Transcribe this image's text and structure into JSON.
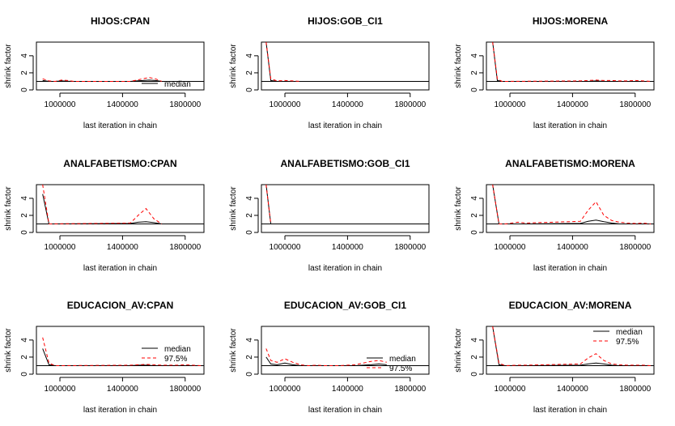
{
  "figure": {
    "rows": 3,
    "cols": 3
  },
  "chart_data": [
    {
      "type": "line",
      "title": "HIJOS:CPAN",
      "xlabel": "last iteration in chain",
      "ylabel": "shrink factor",
      "xlim": [
        850000,
        1920000
      ],
      "ylim": [
        0,
        5.6
      ],
      "xticks": [
        1000000,
        1400000,
        1800000
      ],
      "xtick_labels": [
        "1000000",
        "1400000",
        "1800000"
      ],
      "yticks": [
        0,
        2,
        4
      ],
      "ytick_labels": [
        "0",
        "2",
        "4"
      ],
      "reference_line": 1,
      "legend": {
        "entries": [
          "median"
        ],
        "position": "bottom-right"
      },
      "series": [
        {
          "name": "median",
          "style": "solid",
          "color": "#000000",
          "x": [
            890000,
            930000,
            970000,
            1010000,
            1050000,
            1090000,
            1130000,
            1170000,
            1210000,
            1250000,
            1290000,
            1330000,
            1370000,
            1410000,
            1450000,
            1490000,
            1530000,
            1570000,
            1610000,
            1650000
          ],
          "y": [
            1.1,
            1.0,
            1.0,
            1.05,
            1.02,
            1.0,
            1.0,
            1.0,
            1.0,
            1.0,
            1.0,
            1.0,
            1.0,
            1.0,
            1.0,
            1.05,
            1.1,
            1.15,
            1.1,
            1.0
          ]
        },
        {
          "name": "97.5%",
          "style": "dashed",
          "color": "#ff0000",
          "x": [
            890000,
            930000,
            970000,
            1010000,
            1050000,
            1090000,
            1130000,
            1170000,
            1210000,
            1250000,
            1290000,
            1330000,
            1370000,
            1410000,
            1450000,
            1490000,
            1530000,
            1570000,
            1610000,
            1650000
          ],
          "y": [
            1.3,
            1.05,
            1.0,
            1.15,
            1.1,
            1.0,
            1.0,
            1.0,
            1.0,
            1.0,
            1.0,
            1.0,
            1.0,
            1.0,
            1.0,
            1.15,
            1.3,
            1.45,
            1.3,
            1.0
          ]
        }
      ]
    },
    {
      "type": "line",
      "title": "HIJOS:GOB_CI1",
      "xlabel": "last iteration in chain",
      "ylabel": "shrink factor",
      "xlim": [
        850000,
        1920000
      ],
      "ylim": [
        0,
        5.6
      ],
      "xticks": [
        1000000,
        1400000,
        1800000
      ],
      "xtick_labels": [
        "1000000",
        "1400000",
        "1800000"
      ],
      "yticks": [
        0,
        2,
        4
      ],
      "ytick_labels": [
        "0",
        "2",
        "4"
      ],
      "reference_line": 1,
      "legend": {
        "entries": [],
        "position": "none"
      },
      "series": [
        {
          "name": "median",
          "style": "solid",
          "color": "#000000",
          "x": [
            880000,
            910000,
            950000,
            1000000,
            1050000,
            1100000
          ],
          "y": [
            5.6,
            1.1,
            1.0,
            1.0,
            1.0,
            1.0
          ]
        },
        {
          "name": "97.5%",
          "style": "dashed",
          "color": "#ff0000",
          "x": [
            880000,
            910000,
            950000,
            1000000,
            1050000,
            1100000
          ],
          "y": [
            5.6,
            1.3,
            1.05,
            1.1,
            1.05,
            1.0
          ]
        }
      ]
    },
    {
      "type": "line",
      "title": "HIJOS:MORENA",
      "xlabel": "last iteration in chain",
      "ylabel": "shrink factor",
      "xlim": [
        850000,
        1920000
      ],
      "ylim": [
        0,
        5.6
      ],
      "xticks": [
        1000000,
        1400000,
        1800000
      ],
      "xtick_labels": [
        "1000000",
        "1400000",
        "1800000"
      ],
      "yticks": [
        0,
        2,
        4
      ],
      "ytick_labels": [
        "0",
        "2",
        "4"
      ],
      "reference_line": 1,
      "legend": {
        "entries": [],
        "position": "none"
      },
      "series": [
        {
          "name": "median",
          "style": "solid",
          "color": "#000000",
          "x": [
            890000,
            920000,
            950000,
            1450000,
            1500000,
            1550000,
            1600000,
            1650000,
            1700000,
            1750000,
            1800000,
            1850000,
            1900000
          ],
          "y": [
            5.6,
            1.1,
            1.0,
            1.0,
            1.0,
            1.05,
            1.0,
            1.0,
            1.0,
            1.0,
            1.0,
            1.0,
            1.0
          ]
        },
        {
          "name": "97.5%",
          "style": "dashed",
          "color": "#ff0000",
          "x": [
            890000,
            920000,
            950000,
            1450000,
            1500000,
            1550000,
            1600000,
            1650000,
            1700000,
            1750000,
            1800000,
            1850000,
            1900000
          ],
          "y": [
            5.6,
            1.3,
            1.0,
            1.05,
            1.1,
            1.15,
            1.1,
            1.1,
            1.05,
            1.05,
            1.1,
            1.05,
            1.0
          ]
        }
      ]
    },
    {
      "type": "line",
      "title": "ANALFABETISMO:CPAN",
      "xlabel": "last iteration in chain",
      "ylabel": "shrink factor",
      "xlim": [
        850000,
        1920000
      ],
      "ylim": [
        0,
        5.6
      ],
      "xticks": [
        1000000,
        1400000,
        1800000
      ],
      "xtick_labels": [
        "1000000",
        "1400000",
        "1800000"
      ],
      "yticks": [
        0,
        2,
        4
      ],
      "ytick_labels": [
        "0",
        "2",
        "4"
      ],
      "reference_line": 1,
      "legend": {
        "entries": [],
        "position": "none"
      },
      "series": [
        {
          "name": "median",
          "style": "solid",
          "color": "#000000",
          "x": [
            890000,
            930000,
            1450000,
            1500000,
            1550000,
            1600000,
            1650000
          ],
          "y": [
            4.5,
            1.0,
            1.05,
            1.2,
            1.25,
            1.15,
            1.0
          ]
        },
        {
          "name": "97.5%",
          "style": "dashed",
          "color": "#ff0000",
          "x": [
            890000,
            930000,
            1450000,
            1500000,
            1550000,
            1600000,
            1650000
          ],
          "y": [
            5.6,
            1.0,
            1.1,
            2.0,
            2.8,
            1.6,
            1.0
          ]
        }
      ]
    },
    {
      "type": "line",
      "title": "ANALFABETISMO:GOB_CI1",
      "xlabel": "last iteration in chain",
      "ylabel": "shrink factor",
      "xlim": [
        850000,
        1920000
      ],
      "ylim": [
        0,
        5.6
      ],
      "xticks": [
        1000000,
        1400000,
        1800000
      ],
      "xtick_labels": [
        "1000000",
        "1400000",
        "1800000"
      ],
      "yticks": [
        0,
        2,
        4
      ],
      "ytick_labels": [
        "0",
        "2",
        "4"
      ],
      "reference_line": 1,
      "legend": {
        "entries": [],
        "position": "none"
      },
      "series": [
        {
          "name": "median",
          "style": "solid",
          "color": "#000000",
          "x": [
            880000,
            910000
          ],
          "y": [
            5.6,
            1.0
          ]
        },
        {
          "name": "97.5%",
          "style": "dashed",
          "color": "#ff0000",
          "x": [
            880000,
            910000
          ],
          "y": [
            5.6,
            1.0
          ]
        }
      ]
    },
    {
      "type": "line",
      "title": "ANALFABETISMO:MORENA",
      "xlabel": "last iteration in chain",
      "ylabel": "shrink factor",
      "xlim": [
        850000,
        1920000
      ],
      "ylim": [
        0,
        5.6
      ],
      "xticks": [
        1000000,
        1400000,
        1800000
      ],
      "xtick_labels": [
        "1000000",
        "1400000",
        "1800000"
      ],
      "yticks": [
        0,
        2,
        4
      ],
      "ytick_labels": [
        "0",
        "2",
        "4"
      ],
      "reference_line": 1,
      "legend": {
        "entries": [],
        "position": "none"
      },
      "series": [
        {
          "name": "median",
          "style": "solid",
          "color": "#000000",
          "x": [
            890000,
            930000,
            970000,
            1050000,
            1100000,
            1450000,
            1500000,
            1550000,
            1600000,
            1650000,
            1700000,
            1750000,
            1800000,
            1850000,
            1900000
          ],
          "y": [
            5.6,
            1.0,
            1.0,
            1.0,
            1.0,
            1.05,
            1.3,
            1.45,
            1.25,
            1.1,
            1.0,
            1.0,
            1.0,
            1.0,
            1.0
          ]
        },
        {
          "name": "97.5%",
          "style": "dashed",
          "color": "#ff0000",
          "x": [
            890000,
            930000,
            970000,
            1050000,
            1100000,
            1450000,
            1500000,
            1550000,
            1600000,
            1650000,
            1700000,
            1750000,
            1800000,
            1850000,
            1900000
          ],
          "y": [
            5.6,
            1.0,
            1.0,
            1.2,
            1.1,
            1.3,
            2.6,
            3.6,
            2.0,
            1.4,
            1.2,
            1.1,
            1.05,
            1.1,
            1.0
          ]
        }
      ]
    },
    {
      "type": "line",
      "title": "EDUCACION_AV:CPAN",
      "xlabel": "last iteration in chain",
      "ylabel": "shrink factor",
      "xlim": [
        850000,
        1920000
      ],
      "ylim": [
        0,
        5.6
      ],
      "xticks": [
        1000000,
        1400000,
        1800000
      ],
      "xtick_labels": [
        "1000000",
        "1400000",
        "1800000"
      ],
      "yticks": [
        0,
        2,
        4
      ],
      "ytick_labels": [
        "0",
        "2",
        "4"
      ],
      "reference_line": 1,
      "legend": {
        "entries": [
          "median",
          "97.5%"
        ],
        "position": "right"
      },
      "series": [
        {
          "name": "median",
          "style": "solid",
          "color": "#000000",
          "x": [
            890000,
            930000,
            970000,
            1450000,
            1500000,
            1550000,
            1600000,
            1650000,
            1700000,
            1750000,
            1800000,
            1850000,
            1900000
          ],
          "y": [
            3.0,
            1.1,
            1.0,
            1.0,
            1.05,
            1.05,
            1.0,
            1.0,
            1.0,
            1.0,
            1.0,
            1.0,
            1.0
          ]
        },
        {
          "name": "97.5%",
          "style": "dashed",
          "color": "#ff0000",
          "x": [
            890000,
            930000,
            970000,
            1450000,
            1500000,
            1550000,
            1600000,
            1650000,
            1700000,
            1750000,
            1800000,
            1850000,
            1900000
          ],
          "y": [
            4.3,
            1.3,
            1.0,
            1.05,
            1.1,
            1.15,
            1.1,
            1.05,
            1.05,
            1.05,
            1.1,
            1.05,
            1.0
          ]
        }
      ]
    },
    {
      "type": "line",
      "title": "EDUCACION_AV:GOB_CI1",
      "xlabel": "last iteration in chain",
      "ylabel": "shrink factor",
      "xlim": [
        850000,
        1920000
      ],
      "ylim": [
        0,
        5.6
      ],
      "xticks": [
        1000000,
        1400000,
        1800000
      ],
      "xtick_labels": [
        "1000000",
        "1400000",
        "1800000"
      ],
      "yticks": [
        0,
        2,
        4
      ],
      "ytick_labels": [
        "0",
        "2",
        "4"
      ],
      "reference_line": 1,
      "legend": {
        "entries": [
          "median",
          "97.5%"
        ],
        "position": "bottom-right"
      },
      "series": [
        {
          "name": "median",
          "style": "solid",
          "color": "#000000",
          "x": [
            880000,
            910000,
            950000,
            1000000,
            1050000,
            1100000,
            1150000,
            1200000,
            1250000,
            1300000,
            1350000,
            1400000,
            1450000,
            1500000,
            1550000,
            1600000,
            1650000
          ],
          "y": [
            2.0,
            1.2,
            1.1,
            1.3,
            1.1,
            1.0,
            1.0,
            1.0,
            1.0,
            1.0,
            1.0,
            1.0,
            1.0,
            1.05,
            1.1,
            1.2,
            1.1
          ]
        },
        {
          "name": "97.5%",
          "style": "dashed",
          "color": "#ff0000",
          "x": [
            880000,
            910000,
            950000,
            1000000,
            1050000,
            1100000,
            1150000,
            1200000,
            1250000,
            1300000,
            1350000,
            1400000,
            1450000,
            1500000,
            1550000,
            1600000,
            1650000
          ],
          "y": [
            3.0,
            1.6,
            1.4,
            1.8,
            1.4,
            1.1,
            1.0,
            1.05,
            1.0,
            1.0,
            1.0,
            1.05,
            1.1,
            1.3,
            1.5,
            1.6,
            1.4
          ]
        }
      ]
    },
    {
      "type": "line",
      "title": "EDUCACION_AV:MORENA",
      "xlabel": "last iteration in chain",
      "ylabel": "shrink factor",
      "xlim": [
        850000,
        1920000
      ],
      "ylim": [
        0,
        5.6
      ],
      "xticks": [
        1000000,
        1400000,
        1800000
      ],
      "xtick_labels": [
        "1000000",
        "1400000",
        "1800000"
      ],
      "yticks": [
        0,
        2,
        4
      ],
      "ytick_labels": [
        "0",
        "2",
        "4"
      ],
      "reference_line": 1,
      "legend": {
        "entries": [
          "median",
          "97.5%"
        ],
        "position": "top-right"
      },
      "series": [
        {
          "name": "median",
          "style": "solid",
          "color": "#000000",
          "x": [
            890000,
            930000,
            970000,
            1050000,
            1100000,
            1450000,
            1500000,
            1550000,
            1600000,
            1650000,
            1700000,
            1750000,
            1800000,
            1850000,
            1900000
          ],
          "y": [
            5.6,
            1.1,
            1.0,
            1.0,
            1.0,
            1.05,
            1.2,
            1.3,
            1.2,
            1.05,
            1.0,
            1.0,
            1.0,
            1.0,
            1.0
          ]
        },
        {
          "name": "97.5%",
          "style": "dashed",
          "color": "#ff0000",
          "x": [
            890000,
            930000,
            970000,
            1050000,
            1100000,
            1450000,
            1500000,
            1550000,
            1600000,
            1650000,
            1700000,
            1750000,
            1800000,
            1850000,
            1900000
          ],
          "y": [
            5.6,
            1.3,
            1.0,
            1.05,
            1.05,
            1.2,
            1.9,
            2.4,
            1.6,
            1.2,
            1.1,
            1.05,
            1.05,
            1.05,
            1.0
          ]
        }
      ]
    }
  ]
}
